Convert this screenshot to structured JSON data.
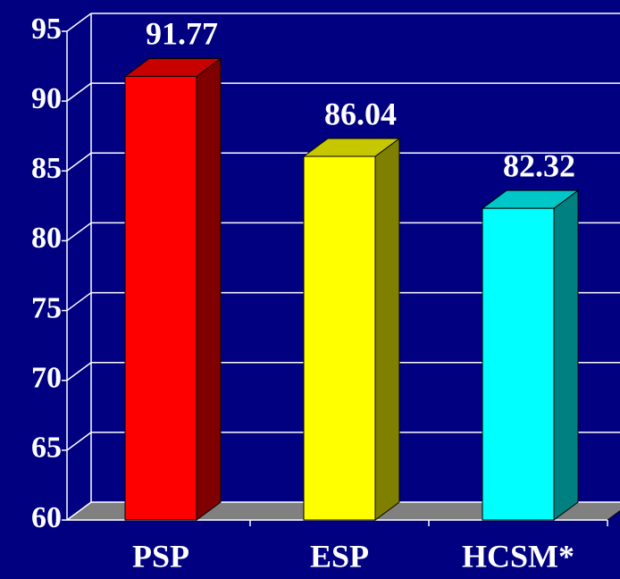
{
  "chart_data": {
    "type": "bar3d",
    "categories": [
      "PSP",
      "ESP",
      "HCSM*"
    ],
    "values": [
      91.77,
      86.04,
      82.32
    ],
    "colors": [
      "#ff0000",
      "#ffff00",
      "#00ffff"
    ],
    "ylim": [
      60,
      95
    ],
    "yticks": [
      60,
      65,
      70,
      75,
      80,
      85,
      90,
      95
    ],
    "grid": true
  }
}
